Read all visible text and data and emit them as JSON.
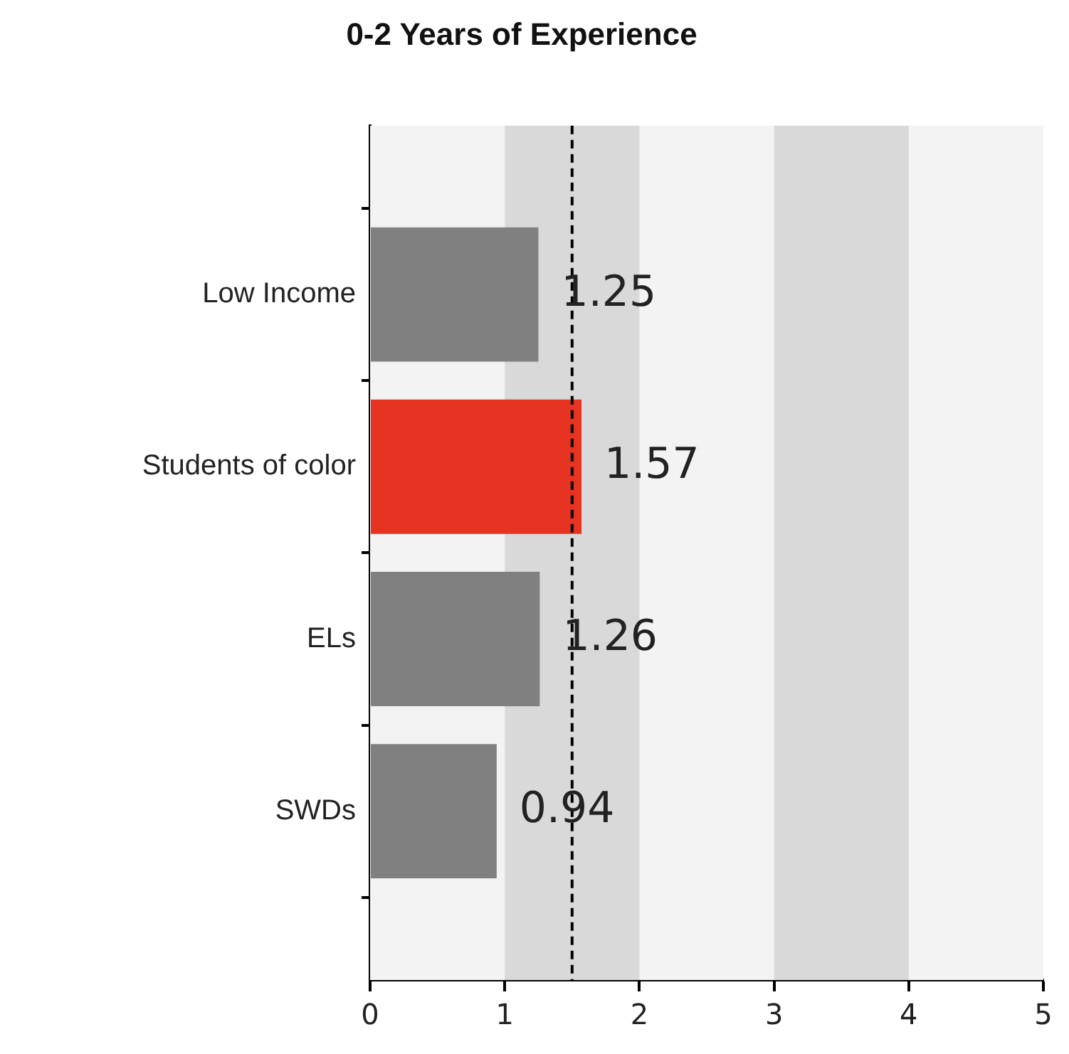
{
  "chart_data": {
    "type": "bar",
    "orientation": "horizontal",
    "title": "0-2 Years of Experience",
    "categories": [
      "Low Income",
      "Students of color",
      "ELs",
      "SWDs"
    ],
    "values": [
      1.25,
      1.57,
      1.26,
      0.94
    ],
    "colors": [
      "#808080",
      "#e63322",
      "#808080",
      "#808080"
    ],
    "xlim": [
      0,
      5
    ],
    "xticks": [
      0,
      1,
      2,
      3,
      4,
      5
    ],
    "grid": false,
    "legend": false,
    "data_labels": true,
    "bands": [
      {
        "axis": "x",
        "from": 1,
        "to": 2,
        "label": null,
        "color": "#d9d9d9"
      },
      {
        "axis": "x",
        "from": 3,
        "to": 4,
        "label": null,
        "color": "#d9d9d9"
      }
    ],
    "ref_lines": [
      {
        "axis": "x",
        "value": 1.5,
        "label": null,
        "color": "#000000",
        "line_style": "dashed"
      }
    ]
  }
}
